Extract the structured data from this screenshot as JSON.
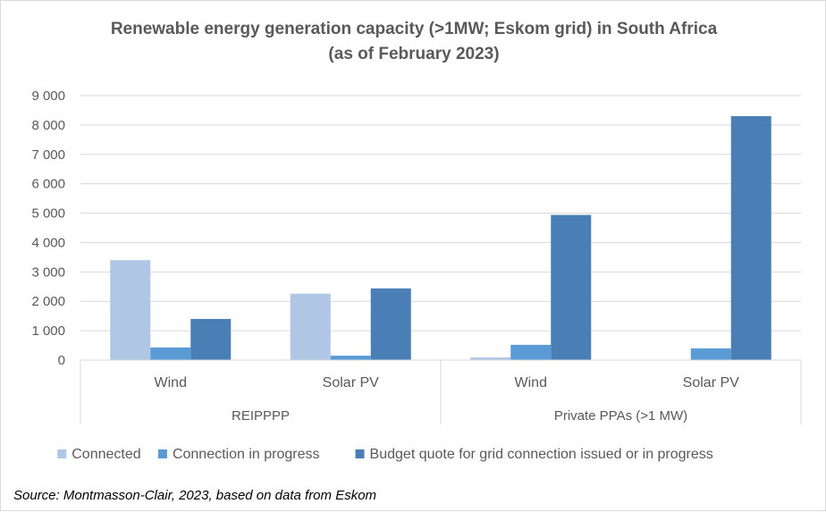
{
  "chart_data": {
    "type": "bar",
    "title_line1": "Renewable energy generation capacity (>1MW; Eskom grid) in South Africa",
    "title_line2": "(as of February 2023)",
    "groups": [
      {
        "label": "REIPPPP",
        "categories": [
          "Wind",
          "Solar PV"
        ]
      },
      {
        "label": "Private PPAs (>1 MW)",
        "categories": [
          "Wind",
          "Solar PV"
        ]
      }
    ],
    "series": [
      {
        "name": "Connected",
        "color": "#afc6e5",
        "values": [
          3400,
          2260,
          90,
          0
        ]
      },
      {
        "name": "Connection in progress",
        "color": "#5b9bd5",
        "values": [
          430,
          150,
          520,
          400
        ]
      },
      {
        "name": "Budget quote for grid connection issued or in progress",
        "color": "#4a7fb5",
        "values": [
          1400,
          2440,
          4940,
          8300
        ]
      }
    ],
    "ylim": [
      0,
      9000
    ],
    "yticks": [
      "0",
      "1 000",
      "2 000",
      "3 000",
      "4 000",
      "5 000",
      "6 000",
      "7 000",
      "8 000",
      "9 000"
    ],
    "grid": true,
    "legend_position": "bottom"
  },
  "source": "Source: Montmasson-Clair, 2023, based on data from Eskom"
}
